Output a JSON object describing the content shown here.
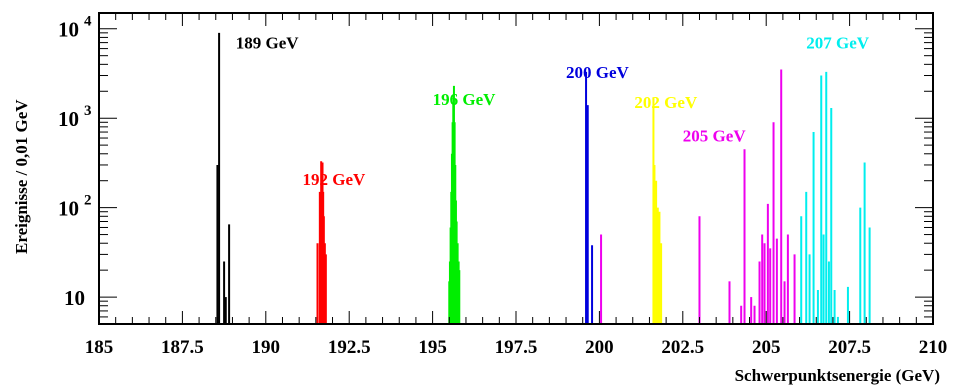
{
  "chart_data": {
    "type": "bar",
    "xlabel": "Schwerpunktsenergie (GeV)",
    "ylabel": "Ereignisse / 0,01 GeV",
    "xlim": [
      185,
      210
    ],
    "ylim": [
      5,
      15000
    ],
    "yscale": "log",
    "grid": false,
    "x_ticks": [
      {
        "value": 185,
        "label": "185"
      },
      {
        "value": 187.5,
        "label": "187.5"
      },
      {
        "value": 190,
        "label": "190"
      },
      {
        "value": 192.5,
        "label": "192.5"
      },
      {
        "value": 195,
        "label": "195"
      },
      {
        "value": 197.5,
        "label": "197.5"
      },
      {
        "value": 200,
        "label": "200"
      },
      {
        "value": 202.5,
        "label": "202.5"
      },
      {
        "value": 205,
        "label": "205"
      },
      {
        "value": 207.5,
        "label": "207.5"
      },
      {
        "value": 210,
        "label": "210"
      }
    ],
    "y_ticks": [
      {
        "value": 10,
        "base": "10",
        "exp": ""
      },
      {
        "value": 100,
        "base": "10",
        "exp": "2"
      },
      {
        "value": 1000,
        "base": "10",
        "exp": "3"
      },
      {
        "value": 10000,
        "base": "10",
        "exp": "4"
      }
    ],
    "series": [
      {
        "name": "189 GeV",
        "color": "#000000",
        "label_x": 189.1,
        "label_y": 6000,
        "x": [
          188.55,
          188.6,
          188.75,
          188.8,
          188.9
        ],
        "values": [
          300,
          9000,
          25,
          10,
          65
        ]
      },
      {
        "name": "192 GeV",
        "color": "#ff0000",
        "label_x": 191.1,
        "label_y": 180,
        "x": [
          191.55,
          191.62,
          191.66,
          191.68,
          191.7,
          191.72,
          191.74,
          191.77,
          191.8
        ],
        "values": [
          40,
          150,
          330,
          300,
          320,
          150,
          80,
          40,
          30
        ]
      },
      {
        "name": "196 GeV",
        "color": "#00ee00",
        "label_x": 195.0,
        "label_y": 1400,
        "x": [
          195.5,
          195.52,
          195.54,
          195.56,
          195.58,
          195.6,
          195.62,
          195.64,
          195.66,
          195.68,
          195.7,
          195.72,
          195.75,
          195.78,
          195.8
        ],
        "values": [
          15,
          25,
          60,
          150,
          400,
          900,
          1500,
          2300,
          900,
          300,
          120,
          70,
          40,
          25,
          20
        ]
      },
      {
        "name": "200 GeV",
        "color": "#0000dd",
        "label_x": 199.0,
        "label_y": 2800,
        "x": [
          199.6,
          199.65,
          199.78
        ],
        "values": [
          3300,
          1400,
          38
        ]
      },
      {
        "name": "202 GeV",
        "color": "#ffff00",
        "label_x": 201.05,
        "label_y": 1300,
        "x": [
          201.62,
          201.65,
          201.7,
          201.75,
          201.8,
          201.85
        ],
        "values": [
          1700,
          300,
          200,
          100,
          90,
          40
        ]
      },
      {
        "name": "205 GeV",
        "color": "#ee00ee",
        "label_x": 202.5,
        "label_y": 550,
        "x": [
          200.05,
          203.0,
          203.9,
          204.25,
          204.35,
          204.55,
          204.65,
          204.8,
          204.88,
          204.95,
          205.05,
          205.12,
          205.22,
          205.32,
          205.45,
          205.55,
          205.65,
          205.85
        ],
        "values": [
          50,
          80,
          15,
          8,
          450,
          10,
          8,
          25,
          50,
          40,
          110,
          35,
          900,
          45,
          3500,
          15,
          50,
          30
        ]
      },
      {
        "name": "207 GeV",
        "color": "#00eeee",
        "label_x": 206.2,
        "label_y": 6000,
        "x": [
          206.05,
          206.2,
          206.3,
          206.42,
          206.55,
          206.65,
          206.72,
          206.8,
          206.88,
          206.95,
          207.05,
          207.15,
          207.45,
          207.82,
          207.95,
          208.1
        ],
        "values": [
          80,
          150,
          30,
          700,
          12,
          3000,
          50,
          3300,
          25,
          1300,
          12,
          6,
          13,
          100,
          320,
          60
        ]
      }
    ]
  }
}
